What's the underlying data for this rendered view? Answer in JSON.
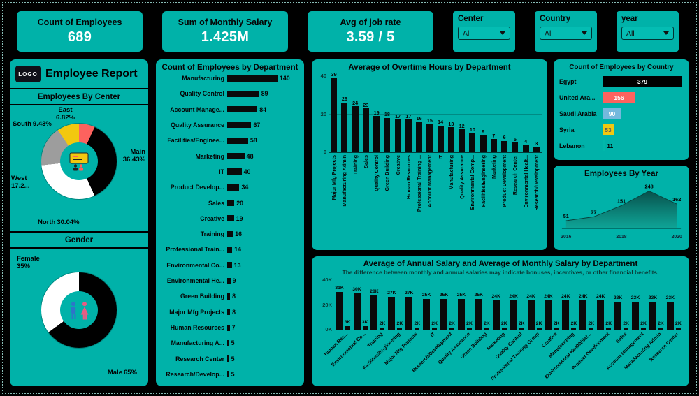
{
  "header": {
    "kpis": [
      {
        "label": "Count of Employees",
        "value": "689"
      },
      {
        "label": "Sum of Monthly Salary",
        "value": "1.425M"
      },
      {
        "label": "Avg of job rate",
        "value": "3.59 / 5"
      }
    ],
    "slicers": [
      {
        "label": "Center",
        "value": "All"
      },
      {
        "label": "Country",
        "value": "All"
      },
      {
        "label": "year",
        "value": "All"
      }
    ]
  },
  "sidebar": {
    "logo_text": "LOGO",
    "title": "Employee Report"
  },
  "colors": {
    "panel_teal": "#00b2a9",
    "bar_black": "#0a0a0a",
    "kpi_value_white": "#ffffff"
  },
  "chart_data": [
    {
      "id": "dept_count",
      "type": "bar",
      "orientation": "horizontal",
      "title": "Count of Employees by Department",
      "categories": [
        "Manufacturing",
        "Quality Control",
        "Account Manage...",
        "Quality Assurance",
        "Facilities/Enginee...",
        "Marketing",
        "IT",
        "Product Develop...",
        "Sales",
        "Creative",
        "Training",
        "Professional Train...",
        "Environmental Co...",
        "Environmental He...",
        "Green Building",
        "Major Mfg Projects",
        "Human Resources",
        "Manufacturing A...",
        "Research Center",
        "Research/Develop..."
      ],
      "values": [
        140,
        89,
        84,
        67,
        58,
        48,
        40,
        34,
        20,
        19,
        16,
        14,
        13,
        9,
        8,
        8,
        7,
        5,
        5,
        5
      ],
      "xlim": [
        0,
        140
      ]
    },
    {
      "id": "overtime_by_dept",
      "type": "bar",
      "orientation": "vertical",
      "title": "Average of Overtime Hours by Department",
      "categories": [
        "Major Mfg Projects",
        "Manufacturing Admin",
        "Training",
        "Sales",
        "Quality Control",
        "Green Building",
        "Creative",
        "Human Resources",
        "Professional Training ...",
        "Account Management",
        "IT",
        "Manufacturing",
        "Quality Assurance",
        "Environmental Comp...",
        "Facilities/Engineering",
        "Marketing",
        "Product Development",
        "Research Center",
        "Environmental Healt...",
        "Research/Development"
      ],
      "values": [
        39,
        26,
        24,
        23,
        19,
        18,
        17,
        17,
        16,
        15,
        14,
        13,
        12,
        10,
        9,
        7,
        6,
        5,
        4,
        3
      ],
      "ylim": [
        0,
        40
      ],
      "yticks": [
        "0",
        "20",
        "40"
      ]
    },
    {
      "id": "employees_by_country",
      "type": "bar",
      "orientation": "horizontal",
      "title": "Count of Employees by Country",
      "categories": [
        "Egypt",
        "United Ara...",
        "Saudi Arabia",
        "Syria",
        "Lebanon"
      ],
      "values": [
        379,
        156,
        90,
        53,
        11
      ],
      "bar_colors": [
        "#000000",
        "#fd625e",
        "#74b9dd",
        "#f2c80f",
        "#01b8aa"
      ],
      "value_colors": [
        "#ffffff",
        "#ffffff",
        "#ffffff",
        "#5a5a5a",
        "#000000"
      ]
    },
    {
      "id": "employees_by_year",
      "type": "area",
      "title": "Employees By Year",
      "x": [
        "2016",
        "2017",
        "2018",
        "2019",
        "2020"
      ],
      "values": [
        51,
        77,
        151,
        248,
        162
      ],
      "xticks": [
        "2016",
        "2018",
        "2020"
      ],
      "ylim": [
        0,
        260
      ]
    },
    {
      "id": "salary_by_department",
      "type": "bar",
      "orientation": "vertical",
      "title": "Average of Annual Salary and Average of Monthly Salary by Department",
      "subtitle": "The difference between monthly and annual salaries may indicate bonuses, incentives, or other financial benefits.",
      "categories": [
        "Human Res...",
        "Environmental Co...",
        "Training",
        "Facilities/Engineering",
        "Major Mfg Projects",
        "IT",
        "Research/Development",
        "Quality Assurance",
        "Green Building",
        "Marketing",
        "Quality Control",
        "Professional Training Group",
        "Creative",
        "Manufacturing",
        "Environmental Health/Saf...",
        "Product Development",
        "Sales",
        "Account Management",
        "Manufacturing Admin",
        "Research Center"
      ],
      "series": [
        {
          "name": "Average of Annual Salary",
          "values": [
            31,
            30,
            28,
            27,
            27,
            25,
            25,
            25,
            25,
            24,
            24,
            24,
            24,
            24,
            24,
            24,
            23,
            23,
            23,
            23
          ],
          "labels": [
            "31K",
            "30K",
            "28K",
            "27K",
            "27K",
            "25K",
            "25K",
            "25K",
            "25K",
            "24K",
            "24K",
            "24K",
            "24K",
            "24K",
            "24K",
            "24K",
            "23K",
            "23K",
            "23K",
            "23K"
          ]
        },
        {
          "name": "Average of Monthly Salary",
          "values": [
            3,
            3,
            2,
            2,
            2,
            2,
            2,
            2,
            2,
            2,
            2,
            2,
            2,
            2,
            2,
            2,
            2,
            2,
            2,
            2
          ],
          "labels": [
            "3K",
            "3K",
            "2K",
            "2K",
            "2K",
            "2K",
            "2K",
            "2K",
            "2K",
            "2K",
            "2K",
            "2K",
            "2K",
            "2K",
            "2K",
            "2K",
            "2K",
            "2K",
            "2K",
            "2K"
          ]
        }
      ],
      "ylim": [
        0,
        40
      ],
      "yticks": [
        "0K",
        "20K",
        "40K"
      ]
    },
    {
      "id": "employees_by_center",
      "type": "pie",
      "title": "Employees By Center",
      "slices": [
        {
          "label": "East",
          "pct": 6.82,
          "pct_text": "6.82%",
          "color": "#fd625e"
        },
        {
          "label": "Main",
          "pct": 36.43,
          "pct_text": "36.43%",
          "color": "#000000"
        },
        {
          "label": "North",
          "pct": 30.04,
          "pct_text": "30.04%",
          "color": "#ffffff"
        },
        {
          "label": "West",
          "pct": 17.28,
          "pct_text": "17.2...",
          "color": "#9d9d9d"
        },
        {
          "label": "South",
          "pct": 9.43,
          "pct_text": "9.43%",
          "color": "#f2c80f"
        }
      ]
    },
    {
      "id": "gender",
      "type": "pie",
      "title": "Gender",
      "slices": [
        {
          "label": "Male",
          "pct": 65,
          "pct_text": "65%",
          "color": "#000000"
        },
        {
          "label": "Female",
          "pct": 35,
          "pct_text": "35%",
          "color": "#ffffff"
        }
      ]
    }
  ]
}
